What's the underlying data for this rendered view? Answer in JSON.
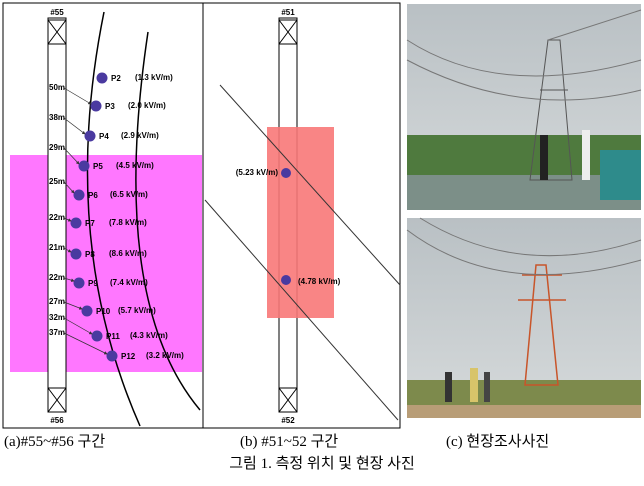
{
  "panel_a": {
    "top_tower": "#55",
    "bottom_tower": "#56",
    "points": [
      {
        "name": "P2",
        "value_label": "(1.3 kV/m)"
      },
      {
        "name": "P3",
        "value_label": "(2.0 kV/m)"
      },
      {
        "name": "P4",
        "value_label": "(2.9 kV/m)"
      },
      {
        "name": "P5",
        "value_label": "(4.5 kV/m)"
      },
      {
        "name": "P6",
        "value_label": "(6.5 kV/m)"
      },
      {
        "name": "P7",
        "value_label": "(7.8 kV/m)"
      },
      {
        "name": "P8",
        "value_label": "(8.6 kV/m)"
      },
      {
        "name": "P9",
        "value_label": "(7.4 kV/m)"
      },
      {
        "name": "P10",
        "value_label": "(5.7 kV/m)"
      },
      {
        "name": "P11",
        "value_label": "(4.3 kV/m)"
      },
      {
        "name": "P12",
        "value_label": "(3.2 kV/m)"
      }
    ],
    "distances": [
      "50m",
      "38m",
      "29m",
      "25m",
      "22m",
      "21m",
      "22m",
      "27m",
      "32m",
      "37m"
    ]
  },
  "panel_b": {
    "top_tower": "#51",
    "bottom_tower": "#52",
    "value_labels": [
      "(5.23 kV/m)",
      "(4.78 kV/m)"
    ]
  },
  "captions": [
    "(a)#55~#56 구간",
    "(b) #51~52 구간",
    "(c) 현장조사사진"
  ],
  "figure_caption": "그림 1. 측정 위치 및 현장 사진"
}
